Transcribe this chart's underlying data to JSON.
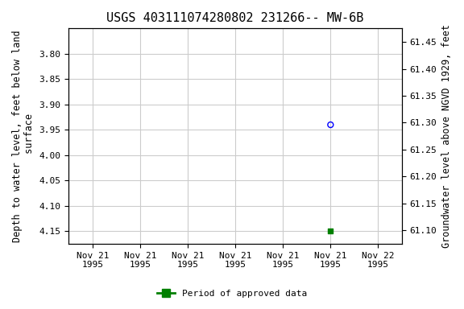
{
  "title": "USGS 403111074280802 231266-- MW-6B",
  "ylabel_left": "Depth to water level, feet below land\n surface",
  "ylabel_right": "Groundwater level above NGVD 1929, feet",
  "ylim_left": [
    3.75,
    4.175
  ],
  "ylim_right": [
    61.075,
    61.475
  ],
  "yticks_left": [
    3.8,
    3.85,
    3.9,
    3.95,
    4.0,
    4.05,
    4.1,
    4.15
  ],
  "yticks_right": [
    61.1,
    61.15,
    61.2,
    61.25,
    61.3,
    61.35,
    61.4,
    61.45
  ],
  "data_points": [
    {
      "date_num": 5,
      "depth": 3.94,
      "marker": "o",
      "color": "blue",
      "facecolor": "none",
      "size": 25,
      "zorder": 5,
      "linewidths": 1.0
    },
    {
      "date_num": 5,
      "depth": 4.15,
      "marker": "s",
      "color": "green",
      "facecolor": "green",
      "size": 15,
      "zorder": 5,
      "linewidths": 1.0
    }
  ],
  "xtick_labels": [
    "Nov 21\n1995",
    "Nov 21\n1995",
    "Nov 21\n1995",
    "Nov 21\n1995",
    "Nov 21\n1995",
    "Nov 21\n1995",
    "Nov 22\n1995"
  ],
  "xtick_positions": [
    0,
    1,
    2,
    3,
    4,
    5,
    6
  ],
  "xlim": [
    -0.5,
    6.5
  ],
  "legend_label": "Period of approved data",
  "legend_color": "green",
  "background_color": "#ffffff",
  "grid_color": "#cccccc",
  "title_fontsize": 11,
  "tick_fontsize": 8,
  "label_fontsize": 8.5
}
